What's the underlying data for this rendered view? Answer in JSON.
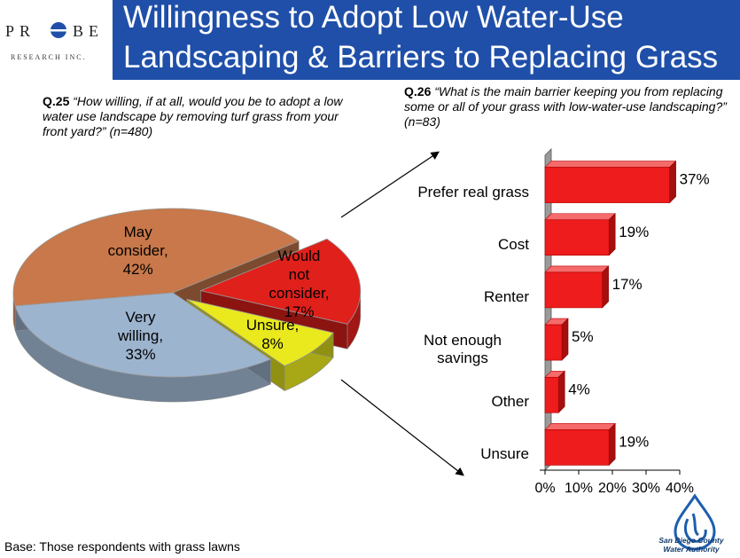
{
  "header": {
    "logo_letters_left": "PR",
    "logo_letters_right": "BE",
    "logo_sub": "RESEARCH INC.",
    "title_line1": "Willingness to Adopt Low Water-Use",
    "title_line2": "Landscaping & Barriers to Replacing Grass"
  },
  "q25": {
    "number": "Q.25",
    "text": "“How willing, if at all, would you be to adopt a low water use landscape by removing turf grass from your front yard?”",
    "n": "(n=480)"
  },
  "q26": {
    "number": "Q.26",
    "text": "“What is the main barrier keeping you from replacing some or all of your grass with low-water-use landscaping?”",
    "n": "(n=83)"
  },
  "chart_data": [
    {
      "type": "pie",
      "slices": [
        {
          "label": "May consider, 42%",
          "value": 42,
          "color": "#c8784a"
        },
        {
          "label": "Would not consider, 17%",
          "value": 17,
          "color": "#e0201b"
        },
        {
          "label": "Unsure, 8%",
          "value": 8,
          "color": "#e9e91e"
        },
        {
          "label": "Very willing, 33%",
          "value": 33,
          "color": "#9db4cf"
        }
      ],
      "pie_labels": [
        [
          "May",
          "consider,",
          "42%"
        ],
        [
          "Would",
          "not",
          "consider,",
          "17%"
        ],
        [
          "Unsure,",
          "8%"
        ],
        [
          "Very",
          "willing,",
          "33%"
        ]
      ]
    },
    {
      "type": "bar",
      "orientation": "horizontal",
      "categories": [
        "Prefer real grass",
        "Cost",
        "Renter",
        "Not enough savings",
        "Other",
        "Unsure"
      ],
      "category_lines": [
        [
          "Prefer real grass"
        ],
        [
          "Cost"
        ],
        [
          "Renter"
        ],
        [
          "Not enough",
          "savings"
        ],
        [
          "Other"
        ],
        [
          "Unsure"
        ]
      ],
      "values": [
        37,
        19,
        17,
        5,
        4,
        19
      ],
      "value_labels": [
        "37%",
        "19%",
        "17%",
        "5%",
        "4%",
        "19%"
      ],
      "xlim": [
        0,
        40
      ],
      "x_ticks": [
        "0%",
        "10%",
        "20%",
        "30%",
        "40%"
      ],
      "bar_color": "#ee1c1c"
    }
  ],
  "footer": {
    "base": "Base:  Those respondents with grass lawns",
    "agency_line1": "San Diego County",
    "agency_line2": "Water Authority"
  }
}
